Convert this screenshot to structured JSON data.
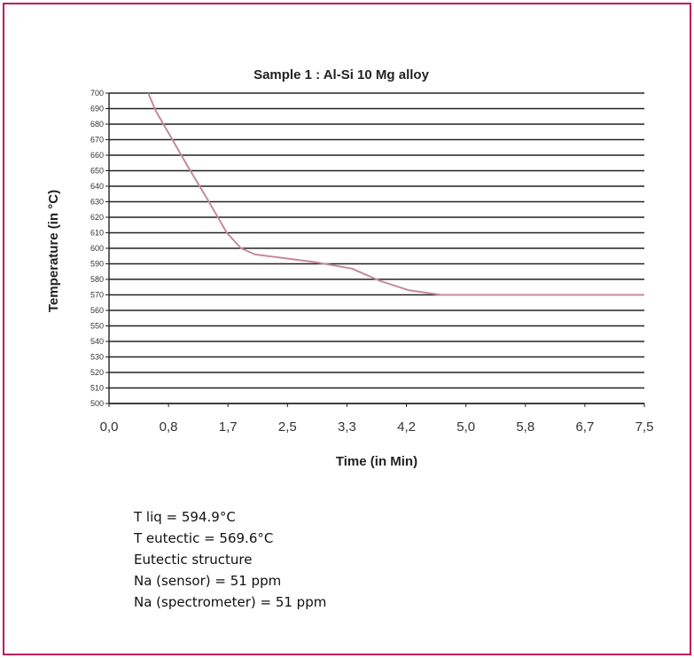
{
  "chart_data": {
    "type": "line",
    "title": "Sample 1 : Al-Si 10 Mg alloy",
    "xlabel": "Time (in Min)",
    "ylabel": "Temperature (in °C)",
    "xlim": [
      0.0,
      7.5
    ],
    "ylim": [
      500,
      700
    ],
    "x_ticks": [
      "0,0",
      "0,8",
      "1,7",
      "2,5",
      "3,3",
      "4,2",
      "5,0",
      "5,8",
      "6,7",
      "7,5"
    ],
    "y_ticks": [
      700,
      690,
      680,
      670,
      660,
      650,
      640,
      630,
      620,
      610,
      600,
      590,
      580,
      570,
      560,
      550,
      540,
      530,
      520,
      510,
      500
    ],
    "grid": true,
    "line_color": "#c48a9a",
    "series": [
      {
        "x": [
          0.55,
          0.65,
          0.85,
          1.1,
          1.4,
          1.65,
          1.85,
          2.05,
          2.4,
          2.9,
          3.4,
          3.8,
          4.2,
          4.65,
          5.5,
          6.5,
          7.5
        ],
        "y": [
          700,
          689,
          673,
          653,
          630,
          610,
          600,
          596,
          594,
          591,
          587,
          579,
          573,
          570,
          570,
          570,
          570
        ]
      }
    ]
  },
  "notes": [
    "T liq = 594.9°C",
    "T eutectic = 569.6°C",
    "Eutectic structure",
    "Na (sensor) = 51 ppm",
    "Na (spectrometer) = 51 ppm"
  ]
}
